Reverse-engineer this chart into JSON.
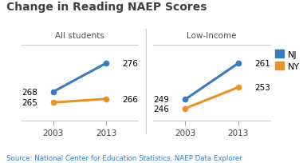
{
  "title": "Change in Reading NAEP Scores",
  "subtitle_left": "All students",
  "subtitle_right": "Low-Income",
  "years": [
    2003,
    2013
  ],
  "all_students": {
    "NJ": [
      268,
      276
    ],
    "NY": [
      265,
      266
    ]
  },
  "low_income": {
    "NJ": [
      249,
      261
    ],
    "NY": [
      246,
      253
    ]
  },
  "nj_color": "#3a7bbf",
  "ny_color": "#e8922a",
  "title_color": "#404040",
  "subtitle_color": "#505050",
  "source_text": "Source: National Center for Education Statistics, NAEP Data Explorer",
  "source_color": "#3a7bbf",
  "ylim_all": [
    260,
    281
  ],
  "ylim_low": [
    242,
    267
  ]
}
